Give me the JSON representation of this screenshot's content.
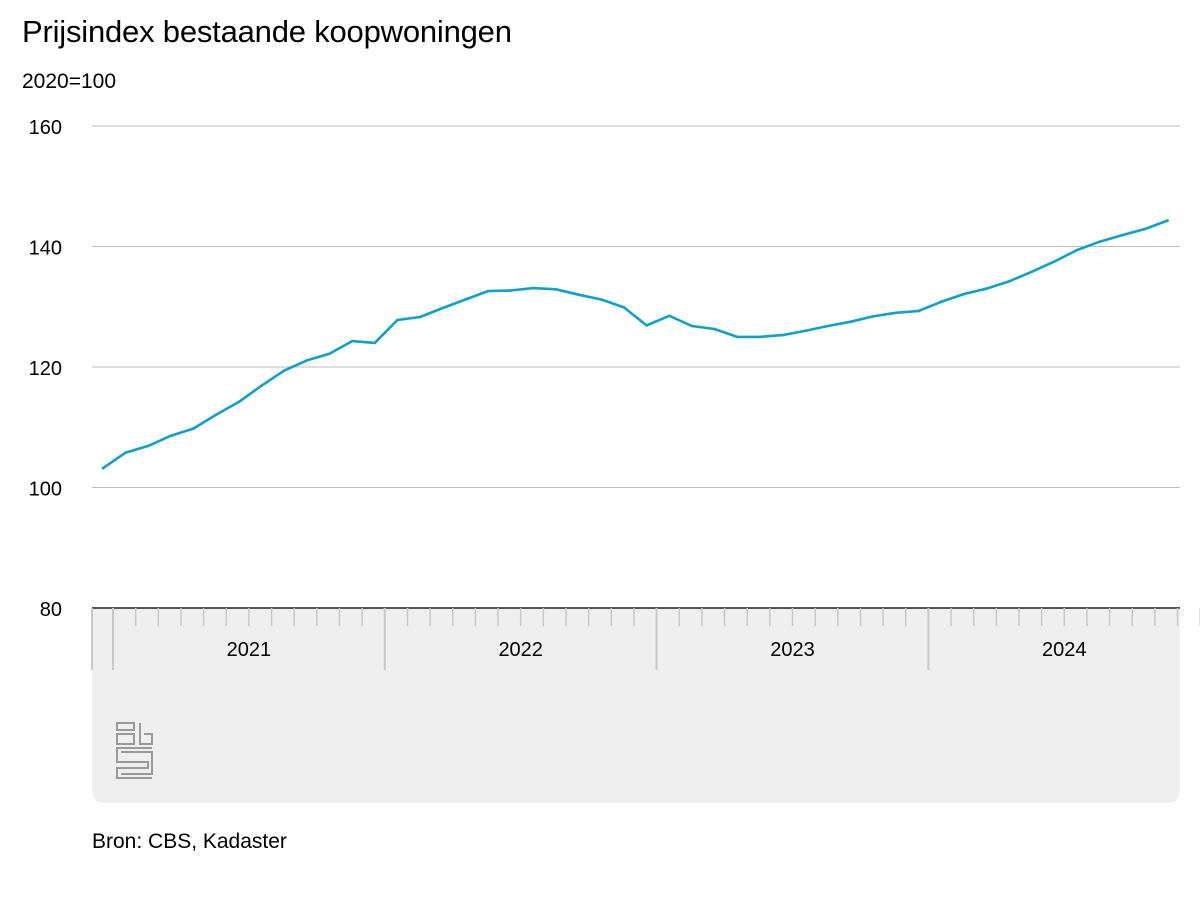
{
  "chart_data": {
    "type": "line",
    "title": "Prijsindex bestaande koopwoningen",
    "subtitle": "2020=100",
    "source": "Bron: CBS, Kadaster",
    "xlabel": "",
    "ylabel": "",
    "ylim": [
      80,
      160
    ],
    "yticks": [
      80,
      100,
      120,
      140,
      160
    ],
    "x_year_labels": [
      "2021",
      "2022",
      "2023",
      "2024"
    ],
    "x_start": "2021-01",
    "x_end": "2024-12",
    "grid": true,
    "colors": {
      "line": "#0fa0cc",
      "grid": "#bdbdbd",
      "axis_band": "#efefef",
      "baseline": "#555555"
    },
    "series": [
      {
        "x": [
          "2021-01",
          "2021-02",
          "2021-03",
          "2021-04",
          "2021-05",
          "2021-06",
          "2021-07",
          "2021-08",
          "2021-09",
          "2021-10",
          "2021-11",
          "2021-12",
          "2022-01",
          "2022-02",
          "2022-03",
          "2022-04",
          "2022-05",
          "2022-06",
          "2022-07",
          "2022-08",
          "2022-09",
          "2022-10",
          "2022-11",
          "2022-12",
          "2023-01",
          "2023-02",
          "2023-03",
          "2023-04",
          "2023-05",
          "2023-06",
          "2023-07",
          "2023-08",
          "2023-09",
          "2023-10",
          "2023-11",
          "2023-12",
          "2024-01",
          "2024-02",
          "2024-03",
          "2024-04",
          "2024-05",
          "2024-06",
          "2024-07",
          "2024-08",
          "2024-09",
          "2024-10",
          "2024-11",
          "2024-12"
        ],
        "values": [
          103.2,
          105.8,
          106.9,
          108.6,
          109.8,
          112.1,
          114.2,
          116.9,
          119.4,
          121.1,
          122.2,
          124.3,
          124.0,
          127.8,
          128.3,
          129.8,
          131.2,
          132.6,
          132.7,
          133.1,
          132.9,
          132.0,
          131.2,
          129.9,
          126.9,
          128.5,
          126.8,
          126.3,
          125.0,
          125.0,
          125.3,
          126.0,
          126.8,
          127.5,
          128.4,
          129.0,
          129.3,
          130.8,
          132.1,
          133.0,
          134.2,
          135.8,
          137.5,
          139.4,
          140.8,
          141.9,
          142.9,
          144.3
        ]
      }
    ]
  },
  "logo": {
    "name": "cbs-logo"
  }
}
